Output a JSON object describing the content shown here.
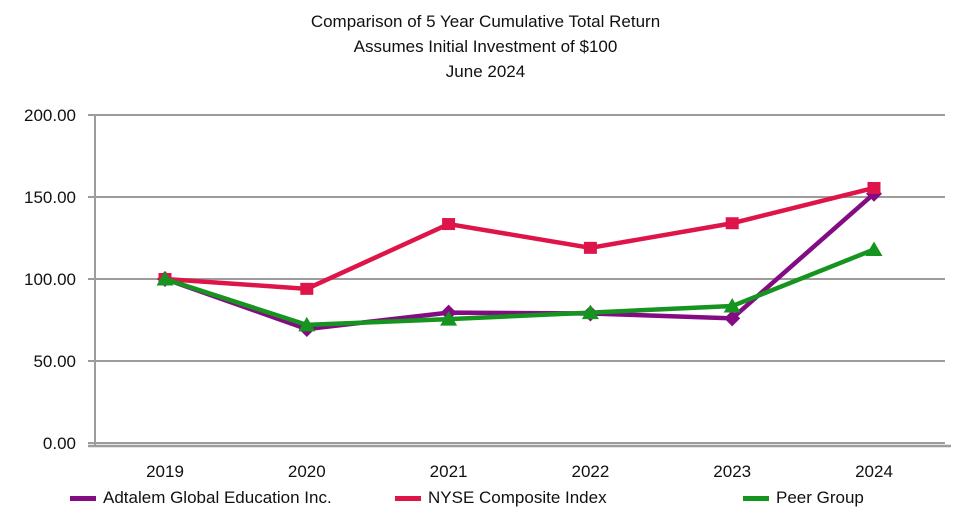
{
  "chart_data": {
    "type": "line",
    "title": "Comparison of 5 Year Cumulative Total Return",
    "subtitle": "Assumes Initial Investment of $100",
    "date_line": "June 2024",
    "xlabel": "",
    "ylabel": "",
    "categories": [
      "2019",
      "2020",
      "2021",
      "2022",
      "2023",
      "2024"
    ],
    "series": [
      {
        "name": "Adtalem Global Education Inc.",
        "color": "#830c83",
        "marker": "diamond",
        "values": [
          100.0,
          69.5,
          79.5,
          79.0,
          76.0,
          152.0
        ]
      },
      {
        "name": "NYSE Composite Index",
        "color": "#de1548",
        "marker": "square",
        "values": [
          100.0,
          94.0,
          133.5,
          119.0,
          134.0,
          155.5
        ]
      },
      {
        "name": "Peer Group",
        "color": "#169420",
        "marker": "triangle",
        "values": [
          100.0,
          72.0,
          75.5,
          79.5,
          83.5,
          118.0
        ]
      }
    ],
    "ylim": [
      0,
      200
    ],
    "yticks": [
      {
        "value": 0,
        "label": "0.00"
      },
      {
        "value": 50,
        "label": "50.00"
      },
      {
        "value": 100,
        "label": "100.00"
      },
      {
        "value": 150,
        "label": "150.00"
      },
      {
        "value": 200,
        "label": "200.00"
      }
    ],
    "grid": true,
    "legend_position": "bottom",
    "axis_color": "#9c9c9c",
    "text_color": "#111111"
  }
}
